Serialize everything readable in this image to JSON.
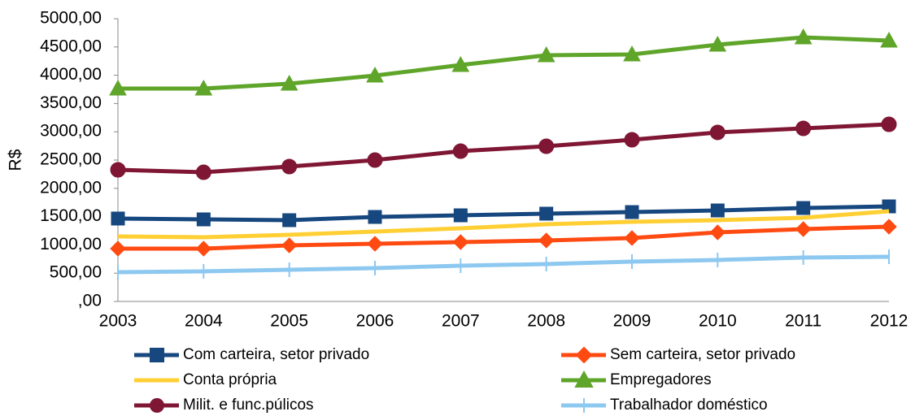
{
  "chart_data": {
    "type": "line",
    "y_label": "R$",
    "x": [
      "2003",
      "2004",
      "2005",
      "2006",
      "2007",
      "2008",
      "2009",
      "2010",
      "2011",
      "2012"
    ],
    "series": [
      {
        "name": "Com carteira, setor privado",
        "color": "#17477f",
        "marker": "square",
        "values": [
          1466,
          1451,
          1437,
          1494,
          1523,
          1552,
          1580,
          1609,
          1652,
          1681
        ]
      },
      {
        "name": "Sem carteira, setor privado",
        "color": "#ff4a12",
        "marker": "diamond",
        "values": [
          934,
          934,
          991,
          1020,
          1049,
          1078,
          1121,
          1221,
          1279,
          1322
        ]
      },
      {
        "name": "Conta própria",
        "color": "#ffcf33",
        "marker": "none",
        "values": [
          1149,
          1135,
          1178,
          1236,
          1293,
          1365,
          1408,
          1437,
          1480,
          1595
        ]
      },
      {
        "name": "Empregadores",
        "color": "#5fa52a",
        "marker": "triangle",
        "values": [
          3764,
          3764,
          3851,
          3994,
          4181,
          4353,
          4368,
          4540,
          4670,
          4612
        ]
      },
      {
        "name": "Milit. e func.púlicos",
        "color": "#7f1634",
        "marker": "circle",
        "values": [
          2328,
          2284,
          2385,
          2500,
          2658,
          2744,
          2859,
          2989,
          3060,
          3132
        ]
      },
      {
        "name": "Trabalhador doméstico",
        "color": "#8dc8f0",
        "marker": "plus",
        "values": [
          517,
          532,
          560,
          589,
          632,
          661,
          704,
          733,
          776,
          790
        ]
      }
    ],
    "ylim": [
      0,
      5000
    ],
    "yticks": [
      {
        "value": 0,
        "label": ",00"
      },
      {
        "value": 500,
        "label": "500,00"
      },
      {
        "value": 1000,
        "label": "1000,00"
      },
      {
        "value": 1500,
        "label": "1500,00"
      },
      {
        "value": 2000,
        "label": "2000,00"
      },
      {
        "value": 2500,
        "label": "2500,00"
      },
      {
        "value": 3000,
        "label": "3000,00"
      },
      {
        "value": 3500,
        "label": "3500,00"
      },
      {
        "value": 4000,
        "label": "4000,00"
      },
      {
        "value": 4500,
        "label": "4500,00"
      },
      {
        "value": 5000,
        "label": "5000,00"
      }
    ],
    "legend": "bottom"
  }
}
